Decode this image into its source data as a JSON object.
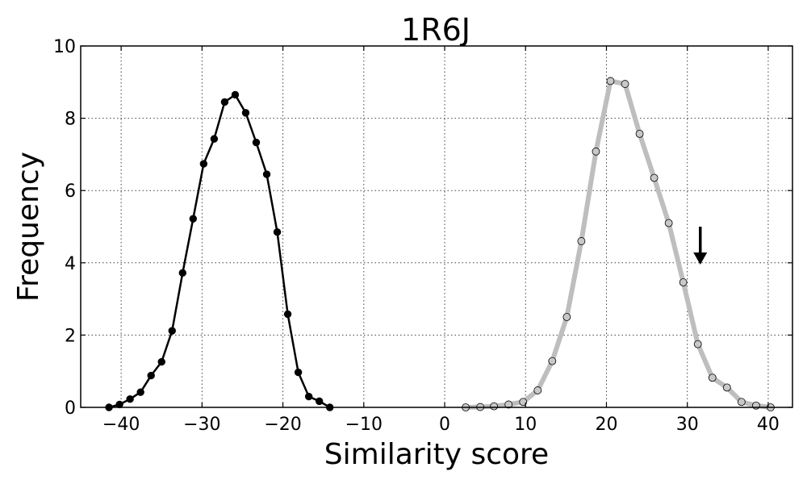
{
  "chart_data": {
    "type": "line",
    "title": "1R6J",
    "xlabel": "Similarity score",
    "ylabel": "Frequency",
    "xlim": [
      -45,
      43
    ],
    "ylim": [
      0,
      10
    ],
    "xticks": [
      -40,
      -30,
      -20,
      -10,
      0,
      10,
      20,
      30,
      40
    ],
    "xtick_labels": [
      "−40",
      "−30",
      "−20",
      "−10",
      "0",
      "10",
      "20",
      "30",
      "40"
    ],
    "yticks": [
      0,
      2,
      4,
      6,
      8,
      10
    ],
    "ytick_labels": [
      "0",
      "2",
      "4",
      "6",
      "8",
      "10"
    ],
    "grid": true,
    "series": [
      {
        "color": "#000000",
        "marker_fill": "#000000",
        "x": [
          -41.5,
          -40.2,
          -38.9,
          -37.6,
          -36.3,
          -35.0,
          -33.7,
          -32.4,
          -31.1,
          -29.8,
          -28.5,
          -27.2,
          -25.9,
          -24.6,
          -23.3,
          -22.0,
          -20.7,
          -19.4,
          -18.1,
          -16.8,
          -15.5,
          -14.2
        ],
        "y": [
          0.0,
          0.08,
          0.23,
          0.42,
          0.88,
          1.26,
          2.12,
          3.72,
          5.22,
          6.74,
          7.43,
          8.45,
          8.65,
          8.15,
          7.33,
          6.45,
          4.85,
          2.58,
          0.97,
          0.3,
          0.17,
          0.0
        ]
      },
      {
        "color": "#bebebe",
        "marker_fill": "#c8c8c8",
        "x": [
          2.6,
          4.4,
          6.1,
          7.9,
          9.7,
          11.5,
          13.3,
          15.1,
          16.9,
          18.7,
          20.5,
          22.3,
          24.1,
          25.9,
          27.7,
          29.5,
          31.3,
          33.1,
          34.9,
          36.7,
          38.5,
          40.3
        ],
        "y": [
          0.0,
          0.01,
          0.03,
          0.08,
          0.15,
          0.47,
          1.28,
          2.5,
          4.6,
          7.08,
          9.03,
          8.95,
          7.57,
          6.35,
          5.1,
          3.46,
          1.75,
          0.82,
          0.55,
          0.15,
          0.05,
          0.0
        ]
      }
    ],
    "annotation": {
      "type": "arrow-down",
      "x": 31.6,
      "y_start": 5.0,
      "y_end": 3.95,
      "color": "#000000"
    }
  }
}
